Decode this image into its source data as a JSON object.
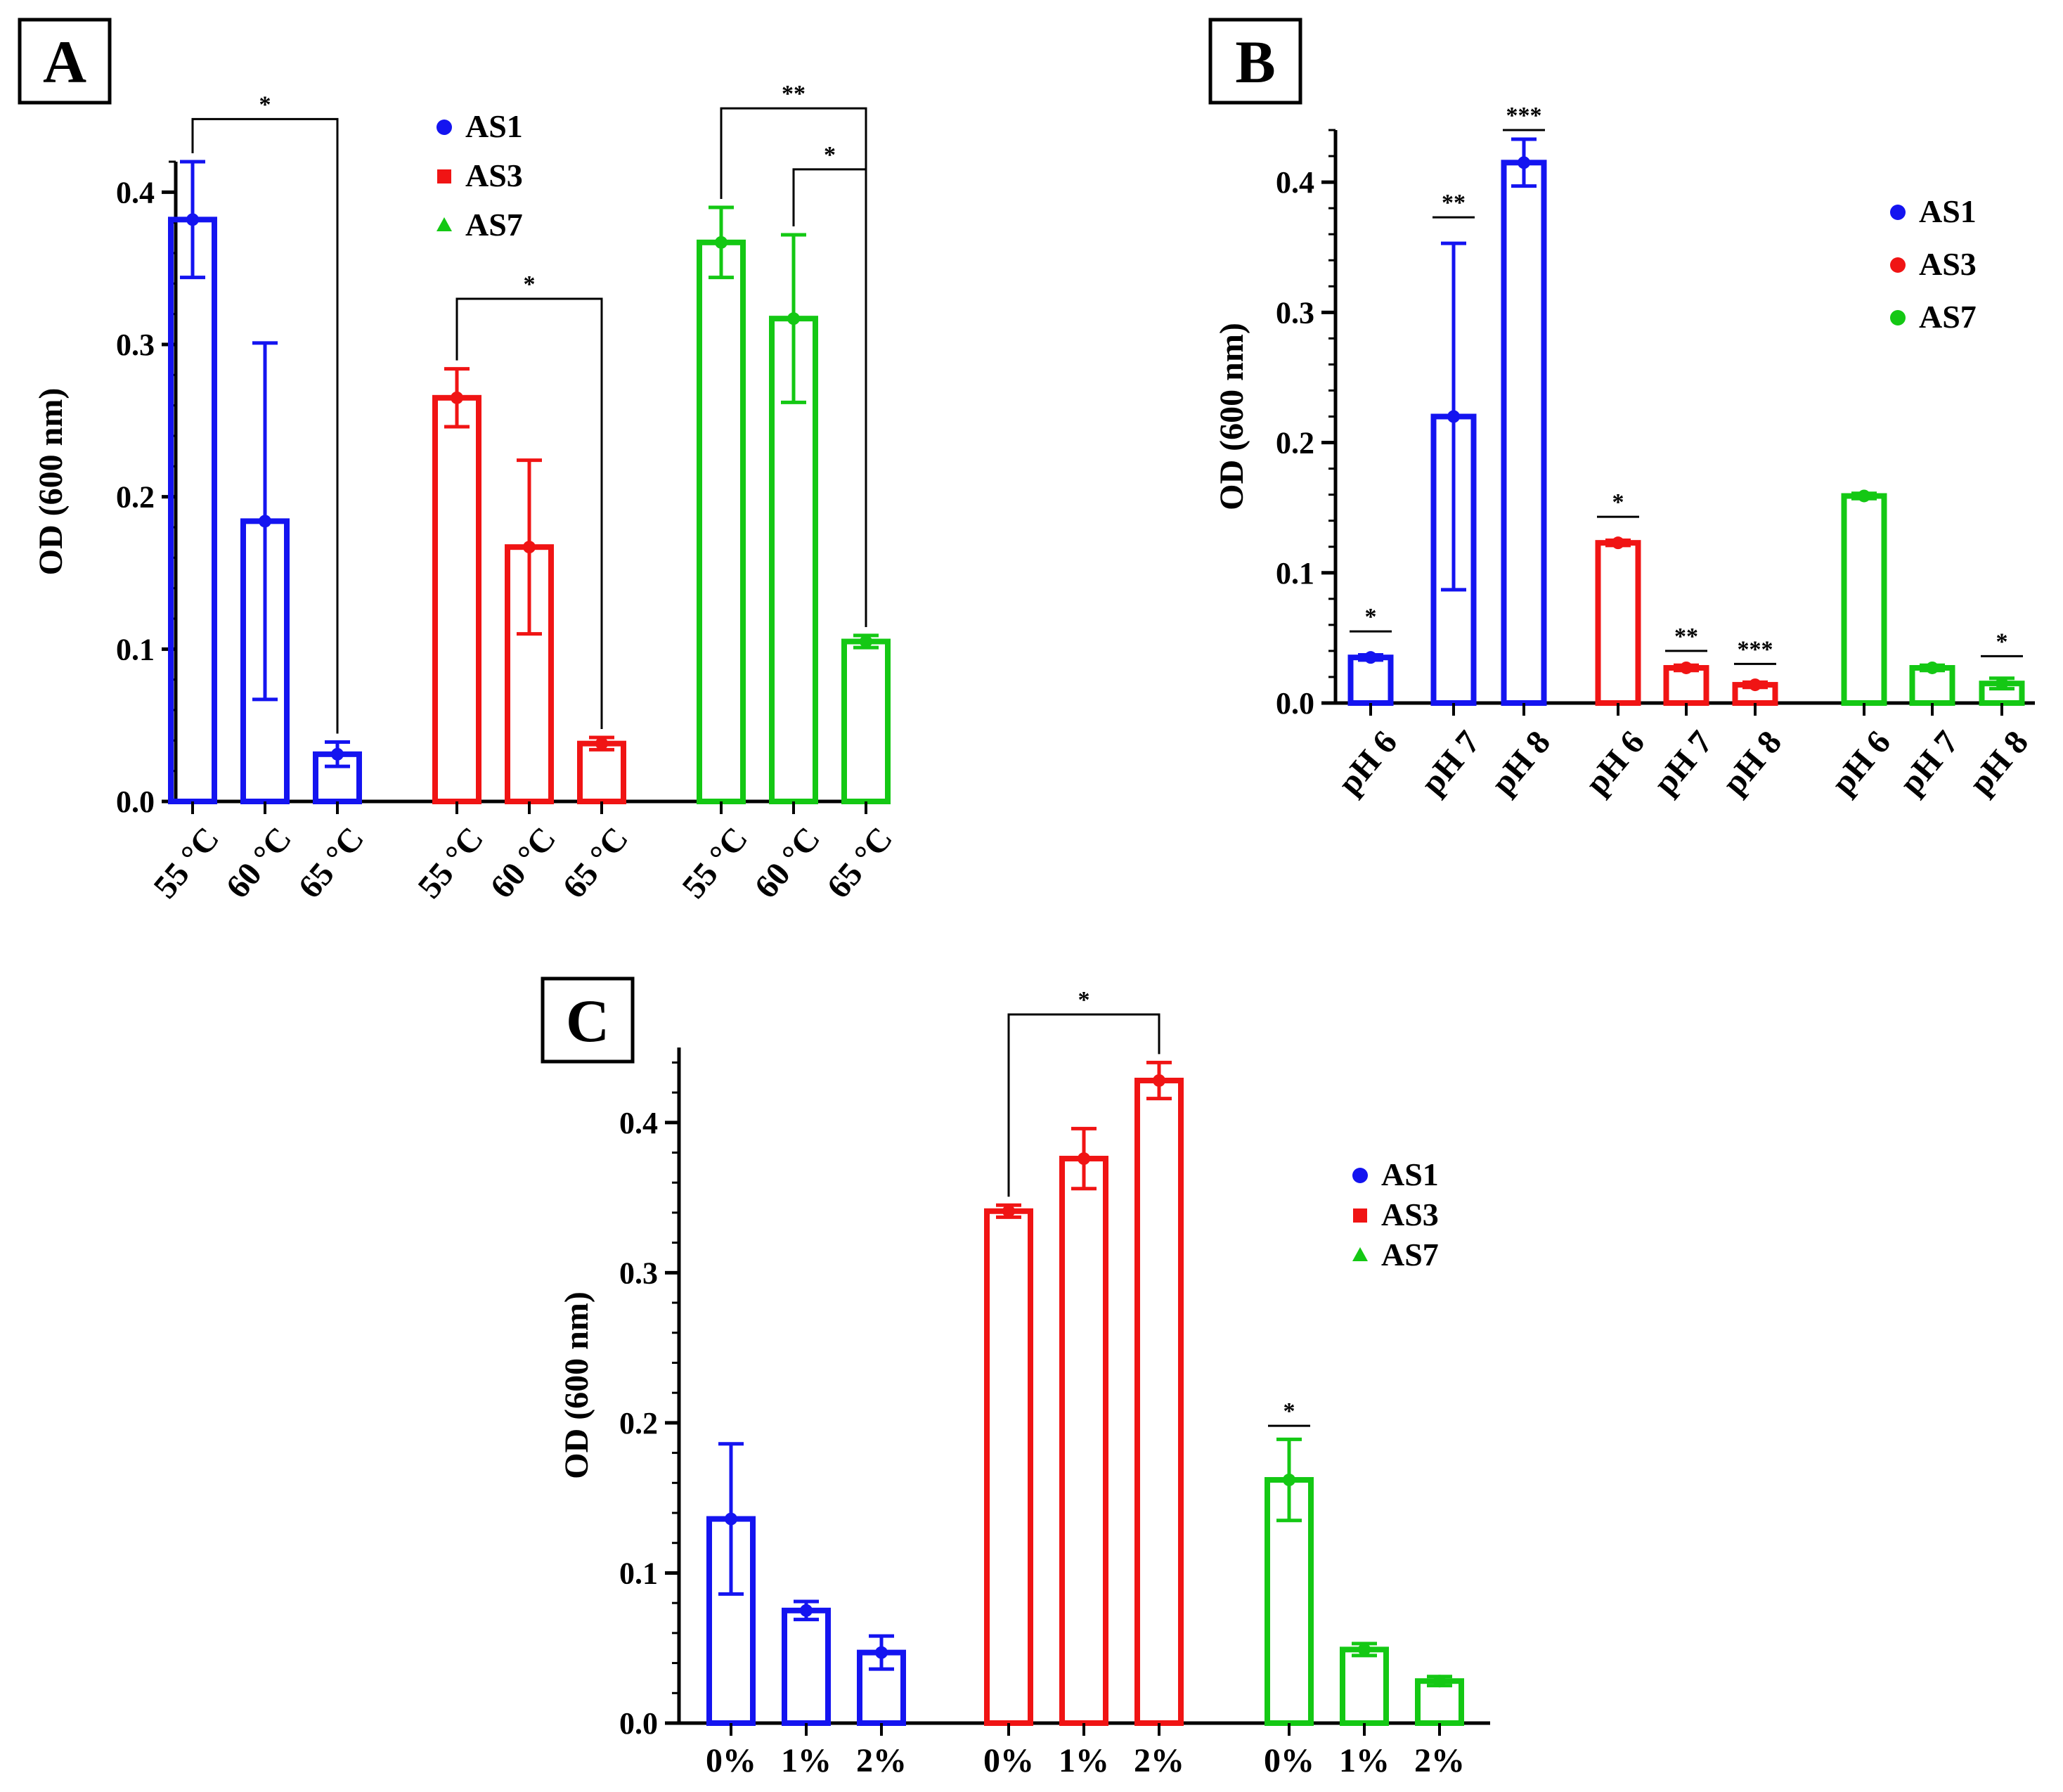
{
  "chart_data": [
    {
      "panel": "A",
      "type": "bar",
      "ylabel": "OD (600 nm)",
      "ylim": [
        0,
        0.42
      ],
      "yticks": [
        "0.0",
        "0.1",
        "0.2",
        "0.3",
        "0.4"
      ],
      "categories": [
        "55 °C",
        "60 °C",
        "65 °C"
      ],
      "legend": [
        {
          "name": "AS1",
          "marker": "circle"
        },
        {
          "name": "AS3",
          "marker": "square"
        },
        {
          "name": "AS7",
          "marker": "triangle"
        }
      ],
      "series": [
        {
          "name": "AS1",
          "color": "#1414f0",
          "values": [
            0.382,
            0.184,
            0.031
          ],
          "errors": [
            0.038,
            0.117,
            0.008
          ]
        },
        {
          "name": "AS3",
          "color": "#f01414",
          "values": [
            0.265,
            0.167,
            0.038
          ],
          "errors": [
            0.019,
            0.057,
            0.004
          ]
        },
        {
          "name": "AS7",
          "color": "#14c814",
          "values": [
            0.367,
            0.317,
            0.105
          ],
          "errors": [
            0.023,
            0.055,
            0.004
          ]
        }
      ],
      "significance": [
        {
          "series": 0,
          "from": 0,
          "to": 2,
          "label": "*",
          "level": 0.448
        },
        {
          "series": 1,
          "from": 0,
          "to": 2,
          "label": "*",
          "level": 0.33
        },
        {
          "series": 2,
          "from": 0,
          "to": 2,
          "label": "**",
          "level": 0.455
        },
        {
          "series": 2,
          "from": 1,
          "to": 2,
          "label": "*",
          "level": 0.415
        }
      ]
    },
    {
      "panel": "B",
      "type": "bar",
      "ylabel": "OD (600 nm)",
      "ylim": [
        0,
        0.44
      ],
      "yticks": [
        "0.0",
        "0.1",
        "0.2",
        "0.3",
        "0.4"
      ],
      "categories": [
        "pH 6",
        "pH 7",
        "pH 8"
      ],
      "legend": [
        {
          "name": "AS1",
          "marker": "circle"
        },
        {
          "name": "AS3",
          "marker": "circle"
        },
        {
          "name": "AS7",
          "marker": "circle"
        }
      ],
      "series": [
        {
          "name": "AS1",
          "color": "#1414f0",
          "values": [
            0.035,
            0.22,
            0.415
          ],
          "errors": [
            0.002,
            0.133,
            0.018
          ]
        },
        {
          "name": "AS3",
          "color": "#f01414",
          "values": [
            0.123,
            0.027,
            0.014
          ],
          "errors": [
            0.002,
            0.002,
            0.002
          ]
        },
        {
          "name": "AS7",
          "color": "#14c814",
          "values": [
            0.159,
            0.027,
            0.015
          ],
          "errors": [
            0.002,
            0.002,
            0.004
          ]
        }
      ],
      "significance": [
        {
          "series": 0,
          "bar": 0,
          "label": "*",
          "level": 0.055
        },
        {
          "series": 0,
          "bar": 1,
          "label": "**",
          "level": 0.373
        },
        {
          "series": 0,
          "bar": 2,
          "label": "***",
          "level": 0.44
        },
        {
          "series": 1,
          "bar": 0,
          "label": "*",
          "level": 0.143
        },
        {
          "series": 1,
          "bar": 1,
          "label": "**",
          "level": 0.04
        },
        {
          "series": 1,
          "bar": 2,
          "label": "***",
          "level": 0.03
        },
        {
          "series": 2,
          "bar": 2,
          "label": "*",
          "level": 0.036
        }
      ]
    },
    {
      "panel": "C",
      "type": "bar",
      "ylabel": "OD (600 nm)",
      "ylim": [
        0,
        0.45
      ],
      "yticks": [
        "0.0",
        "0.1",
        "0.2",
        "0.3",
        "0.4"
      ],
      "categories": [
        "0%",
        "1%",
        "2%"
      ],
      "legend": [
        {
          "name": "AS1",
          "marker": "circle"
        },
        {
          "name": "AS3",
          "marker": "square"
        },
        {
          "name": "AS7",
          "marker": "triangle"
        }
      ],
      "series": [
        {
          "name": "AS1",
          "color": "#1414f0",
          "values": [
            0.136,
            0.075,
            0.047
          ],
          "errors": [
            0.05,
            0.006,
            0.011
          ]
        },
        {
          "name": "AS3",
          "color": "#f01414",
          "values": [
            0.341,
            0.376,
            0.428
          ],
          "errors": [
            0.004,
            0.02,
            0.012
          ]
        },
        {
          "name": "AS7",
          "color": "#14c814",
          "values": [
            0.162,
            0.049,
            0.028
          ],
          "errors": [
            0.027,
            0.004,
            0.003
          ]
        }
      ],
      "significance": [
        {
          "series": 1,
          "from": 0,
          "to": 2,
          "label": "*",
          "level": 0.472
        },
        {
          "series": 2,
          "bar": 0,
          "label": "*",
          "level": 0.198
        }
      ]
    }
  ]
}
